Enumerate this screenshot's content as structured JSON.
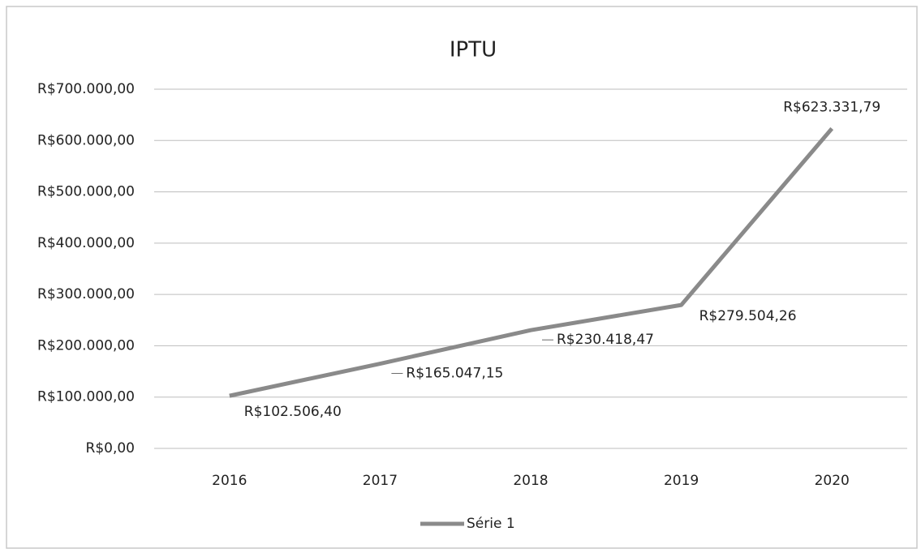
{
  "chart_data": {
    "type": "line",
    "title": "IPTU",
    "categories": [
      "2016",
      "2017",
      "2018",
      "2019",
      "2020"
    ],
    "series": [
      {
        "name": "Série 1",
        "color": "#8a8a8a",
        "values": [
          102506.4,
          165047.15,
          230418.47,
          279504.26,
          623331.79
        ],
        "value_labels": [
          "R$102.506,40",
          "R$165.047,15",
          "R$230.418,47",
          "R$279.504,26",
          "R$623.331,79"
        ]
      }
    ],
    "ylim": [
      0,
      700000
    ],
    "yticks": [
      {
        "value": 0,
        "label": "R$0,00"
      },
      {
        "value": 100000,
        "label": "R$100.000,00"
      },
      {
        "value": 200000,
        "label": "R$200.000,00"
      },
      {
        "value": 300000,
        "label": "R$300.000,00"
      },
      {
        "value": 400000,
        "label": "R$400.000,00"
      },
      {
        "value": 500000,
        "label": "R$500.000,00"
      },
      {
        "value": 600000,
        "label": "R$600.000,00"
      },
      {
        "value": 700000,
        "label": "R$700.000,00"
      }
    ],
    "grid": true,
    "legend": "bottom"
  }
}
